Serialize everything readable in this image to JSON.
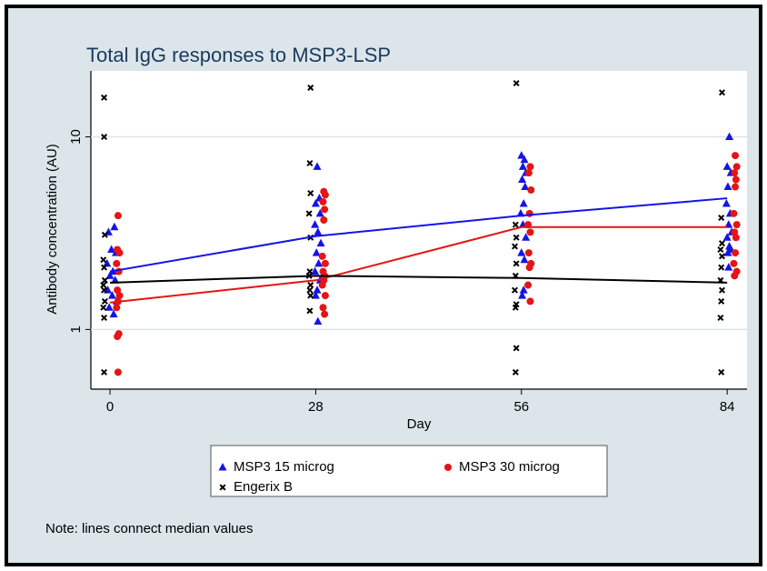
{
  "chart_data": {
    "type": "scatter",
    "title": "Total IgG responses to MSP3-LSP",
    "xlabel": "Day",
    "ylabel": "Antibody concentration (AU)",
    "note": "Note: lines connect median values",
    "xlim": [
      -2.6,
      86.7
    ],
    "ylim": [
      0.49,
      22
    ],
    "log_y": true,
    "xticks": [
      0,
      28,
      56,
      84
    ],
    "yticks": [
      1,
      10
    ],
    "grid": true,
    "series": [
      {
        "name": "MSP3 15 microg",
        "color": "#1414e6",
        "marker": "triangle",
        "x": [
          0.6,
          -0.2,
          0.2,
          0.8,
          -0.4,
          0.4,
          0.0,
          0.7,
          -0.3,
          0.3,
          0.9,
          -0.1,
          0.5,
          28.2,
          28.5,
          28.0,
          28.6,
          27.9,
          28.3,
          28.7,
          28.1,
          28.4,
          27.9,
          28.6,
          28.2,
          28.0,
          28.3,
          56.0,
          56.4,
          56.2,
          56.6,
          56.1,
          56.5,
          56.3,
          55.9,
          56.2,
          56.6,
          56.0,
          56.4,
          56.3,
          56.1,
          84.3,
          84.0,
          84.5,
          84.1,
          83.9,
          84.4,
          84.2,
          84.6,
          84.0,
          84.3,
          84.5,
          84.1,
          84.2
        ],
        "values": [
          3.4,
          3.2,
          2.6,
          2.5,
          2.2,
          2.0,
          1.9,
          1.8,
          1.6,
          1.5,
          1.4,
          1.3,
          1.2,
          7.0,
          4.8,
          4.5,
          4.0,
          3.5,
          3.2,
          2.8,
          2.5,
          2.2,
          2.0,
          1.8,
          1.6,
          1.5,
          1.1,
          8.0,
          7.6,
          7.0,
          6.5,
          6.0,
          5.5,
          4.5,
          4.0,
          3.5,
          3.0,
          2.5,
          2.3,
          1.6,
          1.5,
          10,
          7.0,
          6.5,
          5.5,
          4.5,
          4.0,
          3.5,
          3.2,
          3.0,
          2.7,
          2.6,
          2.5,
          2.1
        ]
      },
      {
        "name": "MSP3 30 microg",
        "color": "#e61414",
        "marker": "circle",
        "x": [
          1.1,
          1.0,
          1.3,
          0.9,
          1.2,
          1.0,
          1.3,
          1.1,
          0.9,
          1.2,
          1.0,
          1.1,
          29.1,
          29.3,
          29.0,
          29.2,
          29.1,
          28.9,
          29.3,
          29.0,
          29.2,
          29.1,
          28.9,
          29.3,
          29.0,
          29.2,
          57.2,
          57.0,
          57.3,
          57.1,
          56.9,
          57.2,
          57.0,
          57.3,
          57.1,
          56.9,
          57.2,
          85.1,
          85.3,
          85.0,
          85.2,
          85.1,
          84.9,
          85.3,
          85.0,
          85.2,
          85.1,
          84.9,
          85.3,
          85.0
        ],
        "values": [
          3.9,
          2.6,
          2.5,
          2.2,
          2.0,
          1.6,
          1.5,
          1.4,
          1.3,
          0.95,
          0.92,
          0.6,
          5.2,
          5.0,
          4.6,
          4.2,
          3.7,
          2.4,
          2.2,
          2.0,
          1.9,
          1.8,
          1.7,
          1.5,
          1.3,
          1.2,
          7.0,
          6.5,
          5.3,
          4.0,
          3.5,
          3.2,
          2.5,
          2.2,
          2.1,
          1.7,
          1.4,
          8.0,
          7.0,
          6.5,
          6.0,
          5.5,
          4.0,
          3.5,
          3.2,
          3.0,
          2.5,
          2.2,
          2.0,
          1.9
        ]
      },
      {
        "name": "Engerix B",
        "color": "#000000",
        "marker": "x",
        "x": [
          -0.8,
          -0.8,
          -0.7,
          -0.9,
          -0.8,
          -0.7,
          -0.9,
          -0.8,
          -0.7,
          -0.9,
          -0.8,
          -0.8,
          27.3,
          27.2,
          27.3,
          27.1,
          27.3,
          27.2,
          27.1,
          27.3,
          27.2,
          27.3,
          27.2,
          55.3,
          55.2,
          55.3,
          55.1,
          55.3,
          55.2,
          55.1,
          55.3,
          55.2,
          55.3,
          55.2,
          83.3,
          83.2,
          83.3,
          83.1,
          83.3,
          83.2,
          83.1,
          83.3,
          83.2,
          83.1,
          83.2
        ],
        "values": [
          16,
          10,
          3.1,
          2.3,
          2.1,
          1.8,
          1.7,
          1.6,
          1.4,
          1.3,
          1.15,
          0.6,
          18,
          7.3,
          5.1,
          4.0,
          3.0,
          2.0,
          1.9,
          1.7,
          1.6,
          1.5,
          1.25,
          19,
          3.5,
          3.0,
          2.7,
          2.2,
          1.9,
          1.6,
          1.35,
          1.3,
          0.8,
          0.6,
          17,
          3.8,
          2.8,
          2.6,
          2.4,
          2.1,
          1.8,
          1.6,
          1.4,
          1.15,
          0.6
        ]
      }
    ],
    "lines": [
      {
        "color": "#1414e6",
        "x": [
          0,
          28,
          56,
          84
        ],
        "values": [
          2.0,
          3.05,
          3.9,
          4.8
        ]
      },
      {
        "color": "#e61414",
        "x": [
          0,
          28,
          56,
          84
        ],
        "values": [
          1.38,
          1.8,
          3.4,
          3.4
        ]
      },
      {
        "color": "#000000",
        "x": [
          0,
          28,
          56,
          84
        ],
        "values": [
          1.75,
          1.9,
          1.85,
          1.75
        ]
      }
    ]
  }
}
